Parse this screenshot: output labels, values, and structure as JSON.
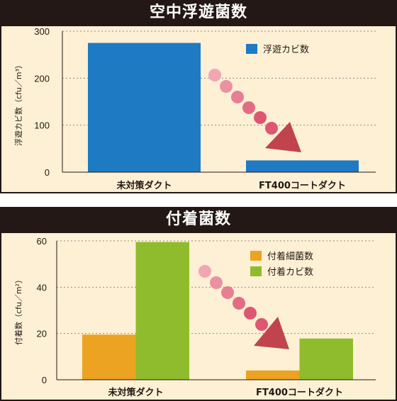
{
  "chart_data": [
    {
      "type": "bar",
      "title": "空中浮遊菌数",
      "ylabel": "浮遊カビ数（cfu／m³）",
      "categories": [
        "未対策ダクト",
        "FT400コートダクト"
      ],
      "series": [
        {
          "name": "浮遊カビ数",
          "values": [
            275,
            25
          ],
          "color": "#1f7ac4"
        }
      ],
      "ylim": [
        0,
        300
      ],
      "yticks": [
        0,
        100,
        200,
        300
      ],
      "grid": "dotted horizontal",
      "legend": "top-right"
    },
    {
      "type": "bar",
      "title": "付着菌数",
      "ylabel": "付着数（cfu／m²）",
      "categories": [
        "未対策ダクト",
        "FT400コートダクト"
      ],
      "series": [
        {
          "name": "付着細菌数",
          "values": [
            19.5,
            4
          ],
          "color": "#eba321"
        },
        {
          "name": "付着カビ数",
          "values": [
            59.5,
            17.8
          ],
          "color": "#8fbc2d"
        }
      ],
      "ylim": [
        0,
        60
      ],
      "yticks": [
        0,
        20,
        40,
        60
      ],
      "grid": "dotted horizontal",
      "legend": "top-right"
    }
  ],
  "colors": {
    "panel_bg": "#fdf0d4",
    "frame": "#231815",
    "arrow_dots": "#f2a6b3",
    "arrow_dots_dark": "#de5771",
    "arrow_head": "#c0434e"
  }
}
